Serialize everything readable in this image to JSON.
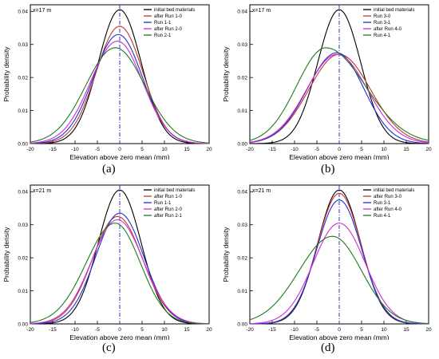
{
  "figure": {
    "panels": [
      {
        "label": "(a)"
      },
      {
        "label": "(b)"
      },
      {
        "label": "(c)"
      },
      {
        "label": "(d)"
      }
    ]
  },
  "colors": {
    "initial bed materials": "#000000",
    "after Run 1-0": "#c0392b",
    "Run 1-1": "#1f2fd6",
    "after Run 2-0": "#d22cd2",
    "Run 2-1": "#1f7a1f",
    "after Run 2-1": "#1f7a1f",
    "Run 3-0": "#c0392b",
    "after Run 3-0": "#c0392b",
    "Run 3-1": "#1f2fd6",
    "after Run 4-0": "#d22cd2",
    "Run 4-1": "#1f7a1f",
    "zero_line": "#3333cc"
  },
  "chart_data": [
    {
      "type": "line",
      "annotation": "x=17 m",
      "xlabel": "Elevation above zero mean (mm)",
      "ylabel": "Probability density",
      "xlim": [
        -20,
        20
      ],
      "ylim": [
        0,
        0.042
      ],
      "xticks": [
        -20,
        -15,
        -10,
        -5,
        0,
        5,
        10,
        15,
        20
      ],
      "yticks": [
        0.0,
        0.01,
        0.02,
        0.03,
        0.04
      ],
      "grid": false,
      "legend_position": "top-right",
      "series": [
        {
          "name": "initial bed materials",
          "peak_x": 0.0,
          "peak": 0.0405,
          "sl": 4.8,
          "sr": 4.8
        },
        {
          "name": "after Run 1-0",
          "peak_x": 0.0,
          "peak": 0.0355,
          "sl": 5.3,
          "sr": 5.2
        },
        {
          "name": "Run 1-1",
          "peak_x": -0.3,
          "peak": 0.033,
          "sl": 5.6,
          "sr": 5.4
        },
        {
          "name": "after Run 2-0",
          "peak_x": -0.5,
          "peak": 0.031,
          "sl": 6.0,
          "sr": 5.6
        },
        {
          "name": "Run 2-1",
          "peak_x": -1.0,
          "peak": 0.029,
          "sl": 6.6,
          "sr": 6.6
        }
      ]
    },
    {
      "type": "line",
      "annotation": "x=17 m",
      "xlabel": "Elevation above zero mean (mm)",
      "ylabel": "Probability density",
      "xlim": [
        -20,
        20
      ],
      "ylim": [
        0,
        0.042
      ],
      "xticks": [
        -20,
        -15,
        -10,
        -5,
        0,
        5,
        10,
        15,
        20
      ],
      "yticks": [
        0.0,
        0.01,
        0.02,
        0.03,
        0.04
      ],
      "grid": false,
      "legend_position": "top-right",
      "series": [
        {
          "name": "initial bed materials",
          "peak_x": 0.0,
          "peak": 0.0405,
          "sl": 4.8,
          "sr": 4.8
        },
        {
          "name": "Run 3-0",
          "peak_x": 0.0,
          "peak": 0.027,
          "sl": 6.8,
          "sr": 7.0
        },
        {
          "name": "Run 3-1",
          "peak_x": -0.5,
          "peak": 0.0275,
          "sl": 6.6,
          "sr": 6.0
        },
        {
          "name": "after Run 4-0",
          "peak_x": -0.5,
          "peak": 0.027,
          "sl": 6.8,
          "sr": 6.8
        },
        {
          "name": "Run 4-1",
          "peak_x": -3.0,
          "peak": 0.029,
          "sl": 6.5,
          "sr": 8.8
        }
      ]
    },
    {
      "type": "line",
      "annotation": "x=21 m",
      "xlabel": "Elevation above zero mean (mm)",
      "ylabel": "Probability density",
      "xlim": [
        -20,
        20
      ],
      "ylim": [
        0,
        0.042
      ],
      "xticks": [
        -20,
        -15,
        -10,
        -5,
        0,
        5,
        10,
        15,
        20
      ],
      "yticks": [
        0.0,
        0.01,
        0.02,
        0.03,
        0.04
      ],
      "grid": false,
      "legend_position": "top-right",
      "series": [
        {
          "name": "initial bed materials",
          "peak_x": 0.0,
          "peak": 0.0405,
          "sl": 4.8,
          "sr": 4.8
        },
        {
          "name": "after Run 1-0",
          "peak_x": -0.5,
          "peak": 0.0325,
          "sl": 5.6,
          "sr": 5.6
        },
        {
          "name": "Run 1-1",
          "peak_x": 0.0,
          "peak": 0.0335,
          "sl": 5.4,
          "sr": 5.4
        },
        {
          "name": "after Run 2-0",
          "peak_x": -0.5,
          "peak": 0.0315,
          "sl": 5.8,
          "sr": 5.8
        },
        {
          "name": "after Run 2-1",
          "peak_x": -1.0,
          "peak": 0.0305,
          "sl": 6.5,
          "sr": 5.6
        }
      ]
    },
    {
      "type": "line",
      "annotation": "x=21 m",
      "xlabel": "Elevation above zero mean (mm)",
      "ylabel": "Probability density",
      "xlim": [
        -20,
        20
      ],
      "ylim": [
        0,
        0.042
      ],
      "xticks": [
        -20,
        -15,
        -10,
        -5,
        0,
        5,
        10,
        15,
        20
      ],
      "yticks": [
        0.0,
        0.01,
        0.02,
        0.03,
        0.04
      ],
      "grid": false,
      "legend_position": "top-right",
      "series": [
        {
          "name": "initial bed materials",
          "peak_x": 0.0,
          "peak": 0.0405,
          "sl": 4.8,
          "sr": 4.8
        },
        {
          "name": "after Run 3-0",
          "peak_x": 0.0,
          "peak": 0.0395,
          "sl": 4.9,
          "sr": 4.9
        },
        {
          "name": "Run 3-1",
          "peak_x": 0.0,
          "peak": 0.0375,
          "sl": 5.0,
          "sr": 5.0
        },
        {
          "name": "after Run 4-0",
          "peak_x": 0.0,
          "peak": 0.0305,
          "sl": 5.8,
          "sr": 5.8
        },
        {
          "name": "Run 4-1",
          "peak_x": -1.5,
          "peak": 0.0265,
          "sl": 7.5,
          "sr": 6.5
        }
      ]
    }
  ]
}
